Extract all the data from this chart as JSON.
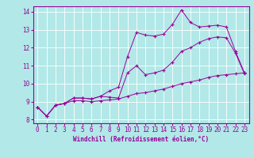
{
  "title": "",
  "xlabel": "Windchill (Refroidissement éolien,°C)",
  "ylabel": "",
  "bg_color": "#b2e8e8",
  "line_color": "#990099",
  "grid_color": "#ffffff",
  "spine_color": "#990099",
  "xlim": [
    -0.5,
    23.5
  ],
  "ylim": [
    7.8,
    14.3
  ],
  "yticks": [
    8,
    9,
    10,
    11,
    12,
    13,
    14
  ],
  "xticks": [
    0,
    1,
    2,
    3,
    4,
    5,
    6,
    7,
    8,
    9,
    10,
    11,
    12,
    13,
    14,
    15,
    16,
    17,
    18,
    19,
    20,
    21,
    22,
    23
  ],
  "line1": [
    8.7,
    8.2,
    8.8,
    8.9,
    9.2,
    9.2,
    9.15,
    9.3,
    9.6,
    9.8,
    11.5,
    12.85,
    12.7,
    12.65,
    12.75,
    13.3,
    14.1,
    13.4,
    13.15,
    13.2,
    13.25,
    13.15,
    11.8,
    10.6
  ],
  "line2": [
    8.7,
    8.2,
    8.8,
    8.9,
    9.2,
    9.2,
    9.15,
    9.3,
    9.25,
    9.2,
    10.6,
    11.0,
    10.5,
    10.6,
    10.75,
    11.2,
    11.8,
    12.0,
    12.3,
    12.5,
    12.6,
    12.55,
    11.7,
    10.55
  ],
  "line3": [
    8.7,
    8.2,
    8.8,
    8.9,
    9.05,
    9.05,
    9.0,
    9.05,
    9.1,
    9.15,
    9.3,
    9.45,
    9.5,
    9.6,
    9.7,
    9.85,
    10.0,
    10.1,
    10.2,
    10.35,
    10.45,
    10.5,
    10.55,
    10.6
  ],
  "xlabel_fontsize": 5.5,
  "tick_fontsize": 5.5,
  "marker_size": 3,
  "linewidth": 0.7
}
